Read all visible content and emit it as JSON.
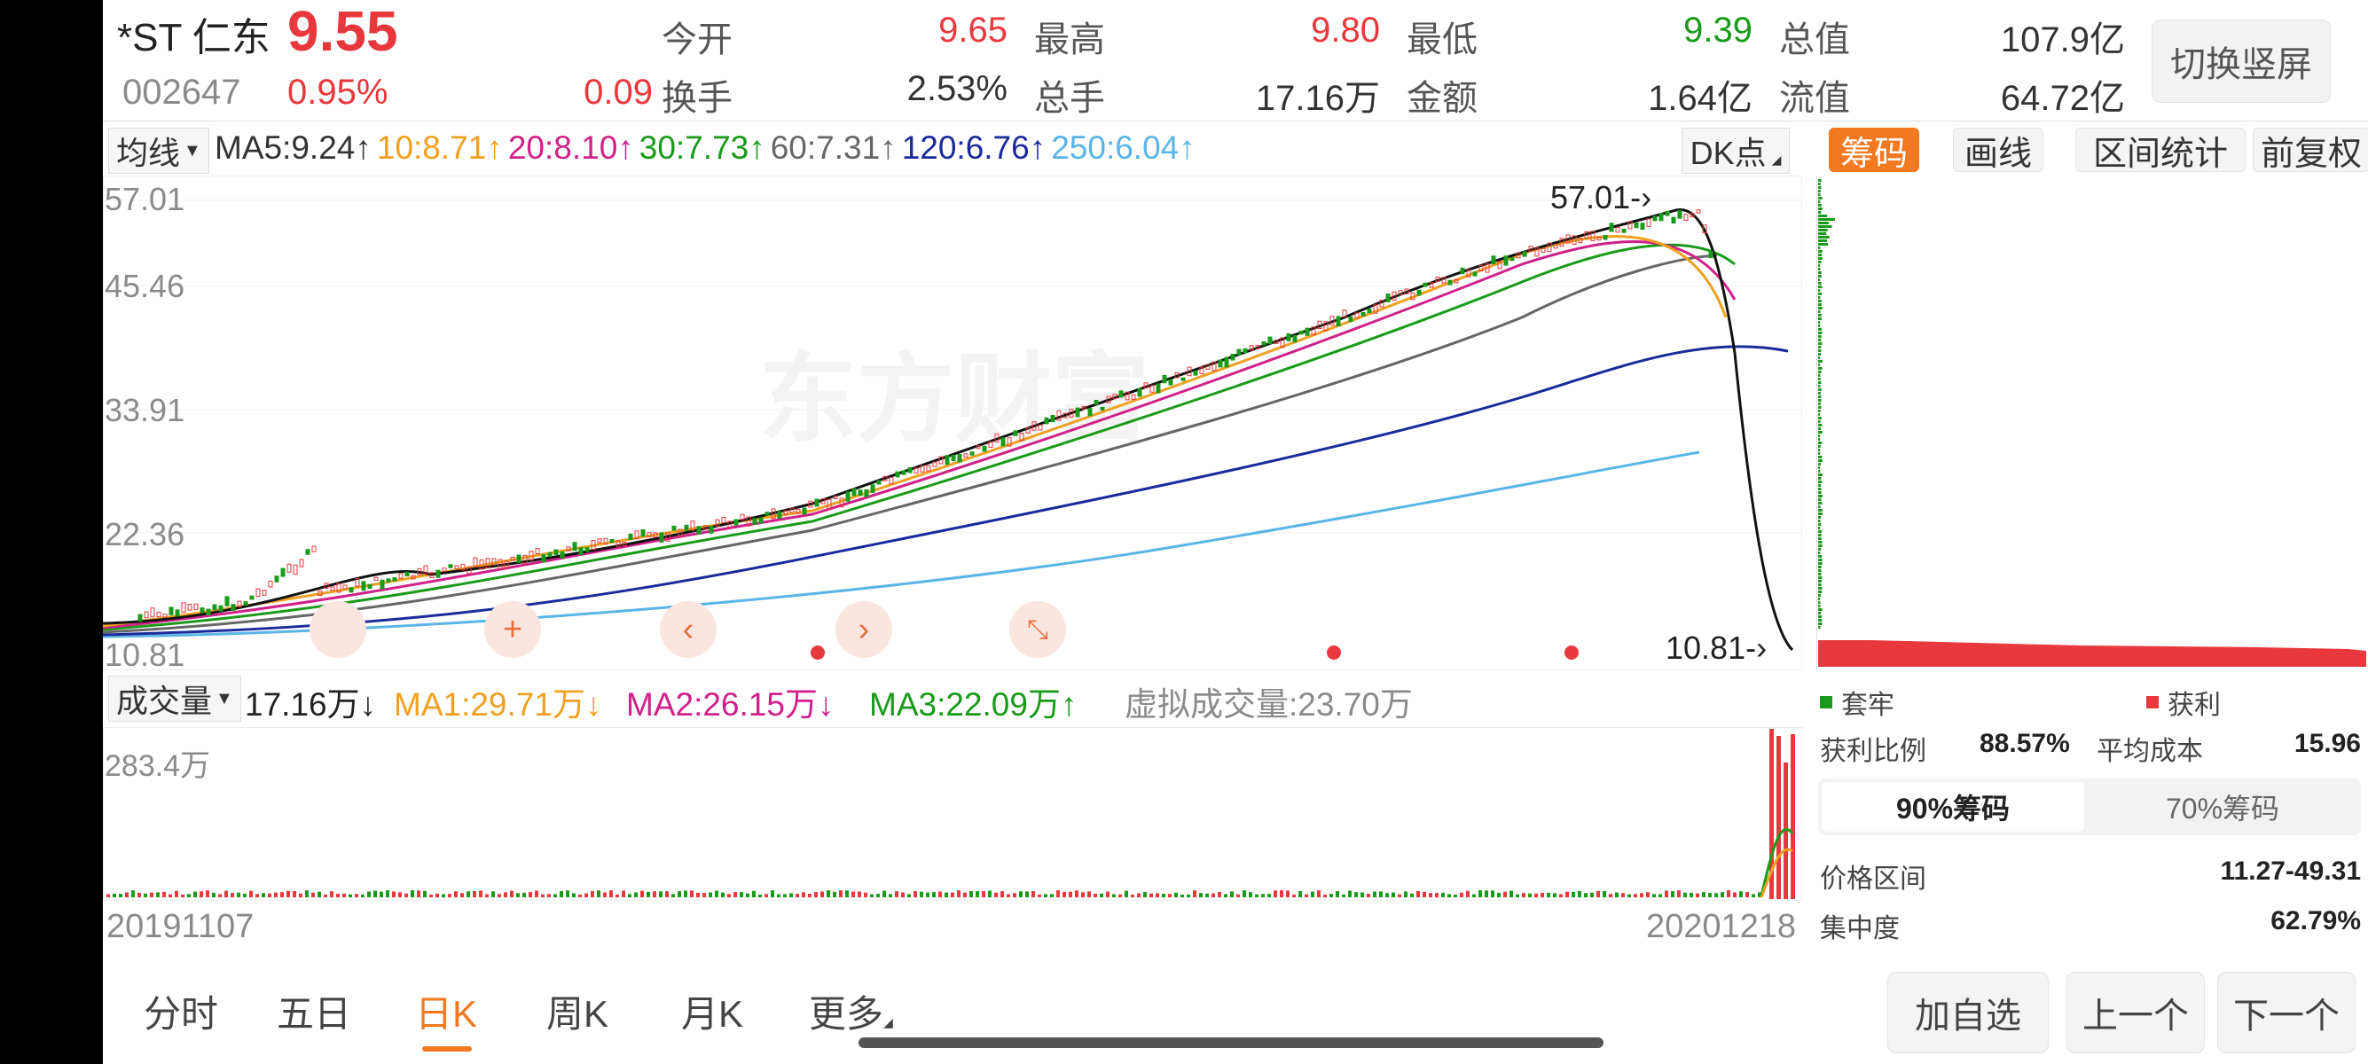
{
  "header": {
    "name": "*ST 仁东",
    "price": "9.55",
    "code": "002647",
    "change_pct": "0.95%",
    "change": "0.09",
    "stats": [
      {
        "label": "今开",
        "value": "9.65",
        "color": "red"
      },
      {
        "label": "最高",
        "value": "9.80",
        "color": "red"
      },
      {
        "label": "最低",
        "value": "9.39",
        "color": "green"
      },
      {
        "label": "总值",
        "value": "107.9亿",
        "color": "dark"
      },
      {
        "label": "换手",
        "value": "2.53%",
        "color": "dark"
      },
      {
        "label": "总手",
        "value": "17.16万",
        "color": "dark"
      },
      {
        "label": "金额",
        "value": "1.64亿",
        "color": "dark"
      },
      {
        "label": "流值",
        "value": "64.72亿",
        "color": "dark"
      }
    ],
    "switch_button": "切换竖屏"
  },
  "ma_bar": {
    "selector": "均线",
    "items": [
      {
        "text": "MA5:9.24↑",
        "color": "#333333"
      },
      {
        "text": "10:8.71↑",
        "color": "#f0a020"
      },
      {
        "text": "20:8.10↑",
        "color": "#d0208a"
      },
      {
        "text": "30:7.73↑",
        "color": "#1a9a1a"
      },
      {
        "text": "60:7.31↑",
        "color": "#666666"
      },
      {
        "text": "120:6.76↑",
        "color": "#1a2a9a"
      },
      {
        "text": "250:6.04↑",
        "color": "#5ab4e6"
      }
    ],
    "dk_button": "DK点"
  },
  "chart": {
    "y_labels": [
      "57.01",
      "45.46",
      "33.91",
      "22.36",
      "10.81"
    ],
    "high_marker": "57.01",
    "low_marker": "10.81",
    "watermark": "东方财富",
    "start_date": "20191107",
    "end_date": "20201218"
  },
  "volume": {
    "selector": "成交量",
    "value": "17.16万↓",
    "ma1": "MA1:29.71万↓",
    "ma2": "MA2:26.15万↓",
    "ma3": "MA3:22.09万↑",
    "virtual": "虚拟成交量:23.70万",
    "max_label": "283.4万"
  },
  "right_panel": {
    "tabs": [
      "筹码",
      "画线",
      "区间统计",
      "前复权"
    ],
    "legend_loss": "套牢",
    "legend_profit": "获利",
    "profit_ratio_label": "获利比例",
    "profit_ratio": "88.57%",
    "avg_cost_label": "平均成本",
    "avg_cost": "15.96",
    "seg_90": "90%筹码",
    "seg_70": "70%筹码",
    "price_range_label": "价格区间",
    "price_range": "11.27-49.31",
    "concentration_label": "集中度",
    "concentration": "62.79%"
  },
  "bottom_nav": {
    "tabs": [
      "分时",
      "五日",
      "日K",
      "周K",
      "月K",
      "更多"
    ],
    "active": "日K",
    "buttons": [
      "加自选",
      "上一个",
      "下一个"
    ]
  },
  "colors": {
    "up": "#e8383d",
    "down": "#1a9a1a",
    "accent": "#f2791f"
  }
}
